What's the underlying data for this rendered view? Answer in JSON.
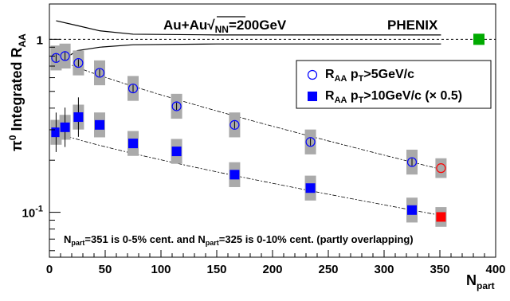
{
  "chart_data": {
    "type": "scatter",
    "experiment_label": "PHENIX",
    "system_label": {
      "prefix": "Au+Au",
      "sub": "NN",
      "suffix": "=200GeV"
    },
    "ylabel": {
      "prefix": "π",
      "sup": "0",
      "main": " Integrated R",
      "sub": "AA"
    },
    "xlabel": {
      "main": "N",
      "sub": "part"
    },
    "xlim": [
      0,
      400
    ],
    "ylim": [
      0.055,
      1.6
    ],
    "yscale": "log",
    "x_ticks": [
      "0",
      "50",
      "100",
      "150",
      "200",
      "250",
      "300",
      "350",
      "400"
    ],
    "y_ticks": [
      {
        "value": 1,
        "label": "1"
      },
      {
        "value": 0.1,
        "label": "10",
        "sup": "-1"
      }
    ],
    "reference_line": 1,
    "legend": {
      "position": "top-right",
      "entries": [
        {
          "main": "R",
          "sub1": "AA",
          "mid": " p",
          "sub2": "T",
          "tail": ">5GeV/c"
        },
        {
          "main": "R",
          "sub1": "AA",
          "mid": " p",
          "sub2": "T",
          "tail": ">10GeV/c (× 0.5)"
        }
      ]
    },
    "footnote": {
      "a": "N",
      "a_sub": "part",
      "b": "=351 is 0-5% cent. and N",
      "c_sub": "part",
      "d": "=325 is 0-10% cent. (partly overlapping)"
    },
    "series": [
      {
        "name": "RAA pT>5GeV/c",
        "marker": "open-circle",
        "color": "#0000ff",
        "x": [
          6,
          14,
          26,
          45,
          75,
          114,
          166,
          234,
          325
        ],
        "y": [
          0.78,
          0.8,
          0.73,
          0.64,
          0.52,
          0.41,
          0.32,
          0.255,
          0.195
        ]
      },
      {
        "name": "RAA pT>10GeV/c (× 0.5)",
        "marker": "filled-square",
        "color": "#0000ff",
        "x": [
          6,
          14,
          26,
          45,
          75,
          114,
          166,
          234,
          325
        ],
        "y": [
          0.29,
          0.31,
          0.355,
          0.32,
          0.25,
          0.225,
          0.165,
          0.138,
          0.103
        ]
      }
    ],
    "extra_points": [
      {
        "x": 351,
        "y": 0.18,
        "marker": "open-circle",
        "color": "#ff0000"
      },
      {
        "x": 351,
        "y": 0.094,
        "marker": "filled-square",
        "color": "#ff0000"
      },
      {
        "x": 385,
        "y": 1.0,
        "marker": "filled-square",
        "color": "#00aa00"
      }
    ]
  }
}
